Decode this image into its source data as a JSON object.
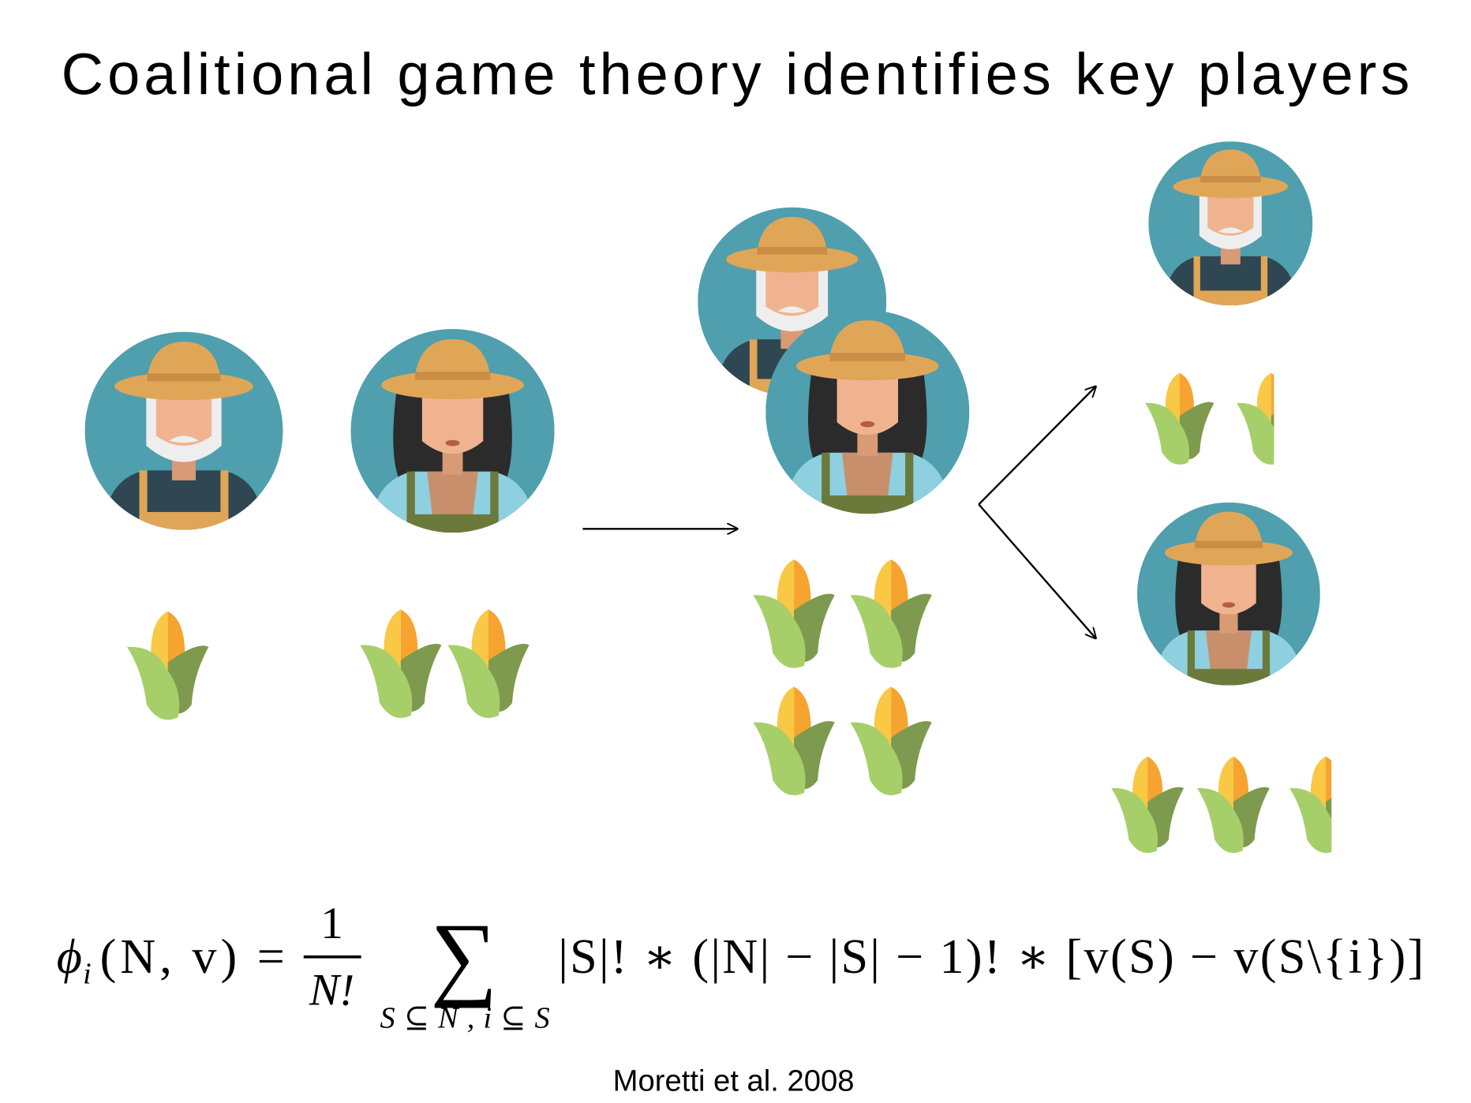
{
  "title": "Coalitional game theory identifies key players",
  "formula": {
    "phi": "ϕ",
    "phi_sub": "i",
    "lhs": "(N, v) =",
    "numerator": "1",
    "denominator": "N!",
    "sum": "∑",
    "sum_sub": "S⊆N,i⊆S",
    "body": "|S|! ∗ (|N| − |S| − 1)! ∗ [v(S) − v(S\\{i})]"
  },
  "citation": "Moretti et al. 2008"
}
